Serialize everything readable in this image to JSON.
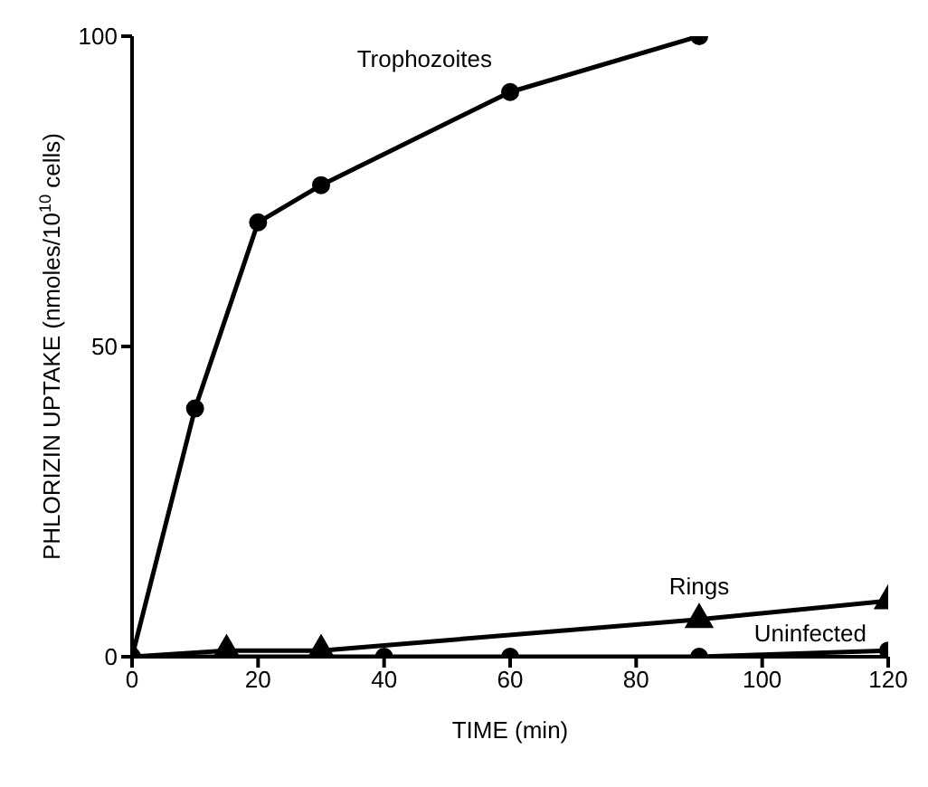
{
  "chart_data": {
    "type": "line",
    "xlabel": "TIME (min)",
    "ylabel": "PHLORIZIN UPTAKE (nmoles/10$^{10}$ cells)",
    "xlim": [
      0,
      120
    ],
    "xticks": [
      0,
      20,
      40,
      60,
      80,
      100,
      120
    ],
    "ylim": [
      0,
      100
    ],
    "yticks": [
      0,
      50,
      100
    ],
    "grid": false,
    "legend": false,
    "line_style": "solid",
    "series": [
      {
        "name": "Trophozoites",
        "color": "#000000",
        "marker": "circle",
        "x": [
          0,
          10,
          20,
          30,
          60,
          90
        ],
        "values": [
          0,
          40,
          70,
          76,
          91,
          100
        ]
      },
      {
        "name": "Uninfected",
        "color": "#000000",
        "marker": "circle",
        "x": [
          0,
          40,
          60,
          90,
          120
        ],
        "values": [
          0,
          0,
          0,
          0,
          1
        ]
      },
      {
        "name": "Rings",
        "color": "#000000",
        "marker": "triangle",
        "x": [
          0,
          15,
          30,
          90,
          120
        ],
        "values": [
          0,
          1,
          1,
          6,
          9
        ]
      }
    ]
  }
}
